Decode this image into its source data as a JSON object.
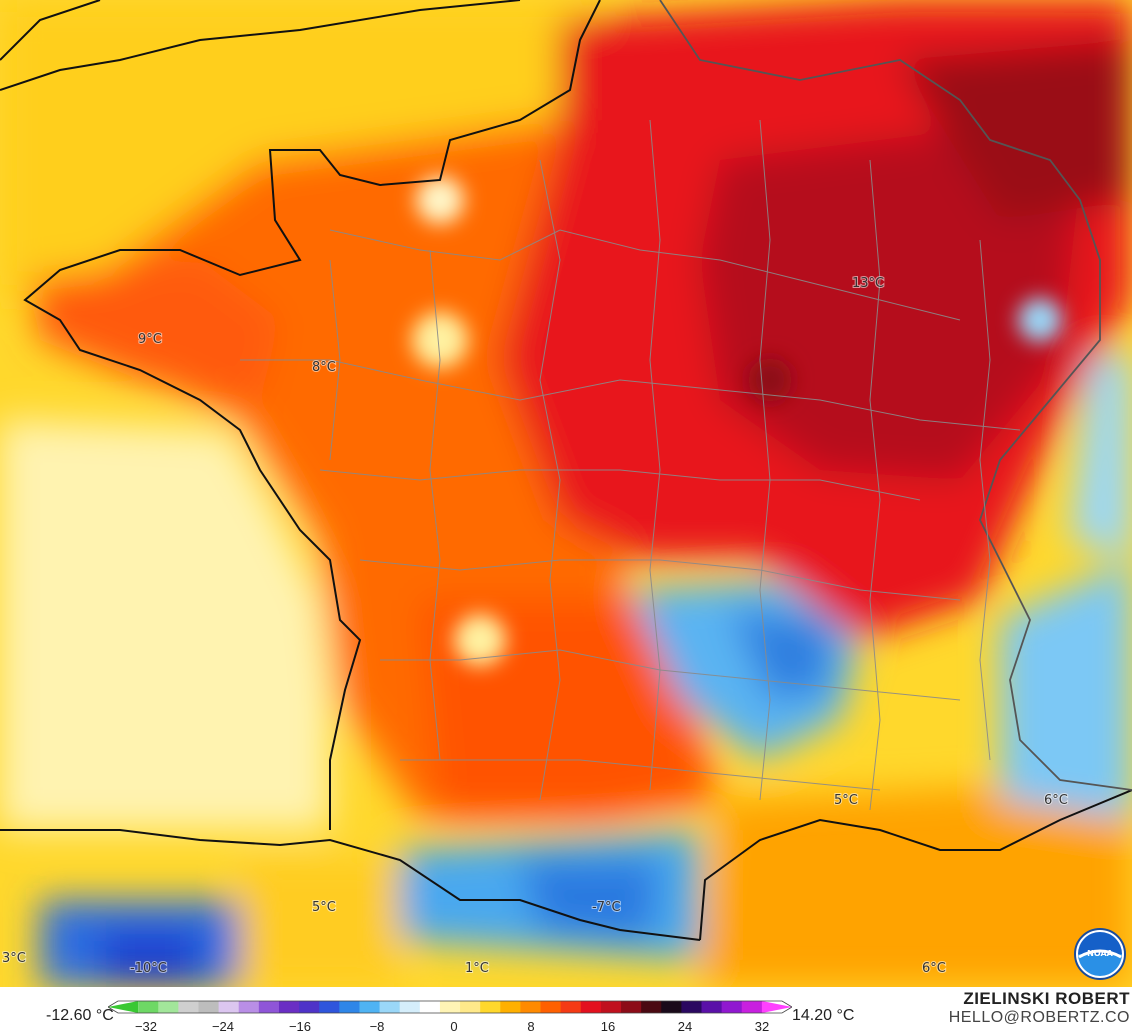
{
  "map": {
    "labels": [
      {
        "text": "13°C",
        "class": "high"
      },
      {
        "text": "9°C",
        "class": "mid"
      },
      {
        "text": "8°C",
        "class": "mid"
      },
      {
        "text": "5°C",
        "class": "low"
      },
      {
        "text": "5°C",
        "class": "low"
      },
      {
        "text": "-7°C",
        "class": "cold"
      },
      {
        "text": "-10°C",
        "class": "cold"
      },
      {
        "text": "3°C",
        "class": "low"
      },
      {
        "text": "1°C",
        "class": "low"
      },
      {
        "text": "6°C",
        "class": "low"
      },
      {
        "text": "6°C",
        "class": "low"
      }
    ]
  },
  "legend": {
    "min": "-12.60 °C",
    "max": "14.20 °C",
    "ticks": [
      "−32",
      "−24",
      "−16",
      "−8",
      "0",
      "8",
      "16",
      "24",
      "32"
    ],
    "colors": [
      "#39c832",
      "#6ed865",
      "#a2e69a",
      "#cfcfcf",
      "#bdbdbd",
      "#dcc6f0",
      "#b98ee6",
      "#8f55d8",
      "#6a2ec4",
      "#4e33c8",
      "#2f55dc",
      "#2f86e8",
      "#4fb3f3",
      "#9ad7f8",
      "#d5eefb",
      "#ffffff",
      "#fff4b5",
      "#ffe98a",
      "#ffd82c",
      "#ffb000",
      "#ff8a00",
      "#ff6000",
      "#f53a14",
      "#e3101e",
      "#c0101e",
      "#8c0c18",
      "#4a0912",
      "#1a0a1a",
      "#2a0860",
      "#5a10a8",
      "#9018d0",
      "#c820e0",
      "#ff40ff"
    ]
  },
  "branding": {
    "author": "ZIELINSKI ROBERT",
    "email": "HELLO@ROBERTZ.CO",
    "logo_text": "NOAA"
  }
}
